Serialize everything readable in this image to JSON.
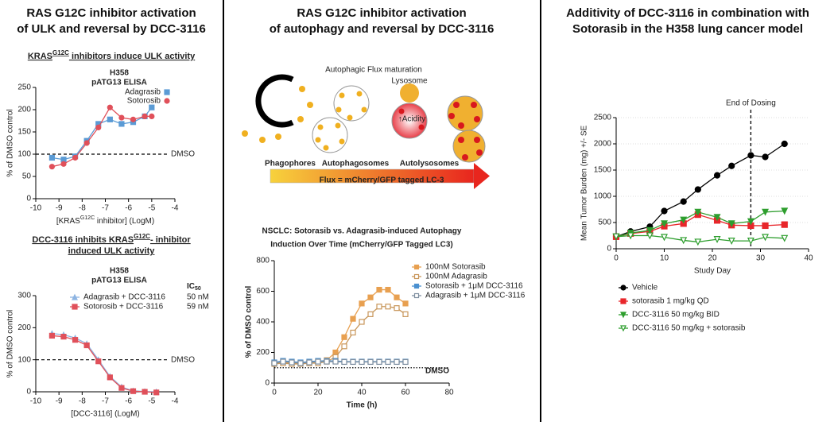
{
  "panels": [
    {
      "title_lines": [
        "RAS G12C inhibitor activation",
        "of ULK and reversal by DCC-3116"
      ],
      "heading1": {
        "pre": "KRAS",
        "sup": "G12C",
        "post": " inhibitors induce ULK activity"
      },
      "heading2": {
        "pre": "DCC-3116 inhibits KRAS",
        "sup": "G12C",
        "post": "- inhibitor",
        "line2": "induced ULK activity"
      }
    },
    {
      "title_lines": [
        "RAS G12C inhibitor activation",
        "of autophagy and reversal by DCC-3116"
      ]
    },
    {
      "title_lines": [
        "Additivity of DCC-3116 in combination with",
        "Sotorasib in the H358 lung cancer model"
      ]
    }
  ],
  "diagram": {
    "title": "Autophagic Flux maturation",
    "lysosome": "Lysosome",
    "acidity": "↑Acidity",
    "stages": [
      "Phagophores",
      "Autophagosomes",
      "Autolysosomes"
    ],
    "flux": "Flux = mCherry/GFP tagged LC-3"
  },
  "chart_data": [
    {
      "type": "line",
      "title": "H358",
      "subtitle": "pATG13 ELISA",
      "x_label": {
        "pre": "[KRAS",
        "sup": "G12C",
        "post": " inhibitor] (LogM)"
      },
      "y_label": "% of DMSO control",
      "x": [
        -9.3,
        -8.8,
        -8.3,
        -7.8,
        -7.3,
        -6.8,
        -6.3,
        -5.8,
        -5.3,
        -5.0
      ],
      "series": [
        {
          "name": "Adagrasib",
          "color": "#5b9bd5",
          "marker": "square",
          "filled": true,
          "values": [
            92,
            88,
            95,
            130,
            168,
            178,
            168,
            172,
            185,
            205
          ]
        },
        {
          "name": "Sotorosib",
          "color": "#e0505a",
          "marker": "circle",
          "filled": true,
          "values": [
            72,
            78,
            92,
            125,
            160,
            205,
            182,
            178,
            185,
            185
          ]
        }
      ],
      "xlim": [
        -10,
        -4
      ],
      "xticks": [
        -10,
        -9,
        -8,
        -7,
        -6,
        -5,
        -4
      ],
      "ylim": [
        0,
        250
      ],
      "yticks": [
        0,
        50,
        100,
        150,
        200,
        250
      ],
      "reference": {
        "value": 100,
        "label": "DMSO"
      }
    },
    {
      "type": "line",
      "title": "H358",
      "subtitle": "pATG13 ELISA",
      "legend_header": {
        "text": "IC",
        "sub": "50"
      },
      "x_label": "[DCC-3116] (LogM)",
      "y_label": "% of DMSO control",
      "x": [
        -9.3,
        -8.8,
        -8.3,
        -7.8,
        -7.3,
        -6.8,
        -6.3,
        -5.8,
        -5.3,
        -4.8
      ],
      "series": [
        {
          "name": "Adagrasib + DCC-3116",
          "ic50": "50 nM",
          "color": "#8db4e2",
          "marker": "triangle",
          "filled": true,
          "values": [
            182,
            178,
            168,
            150,
            100,
            48,
            15,
            3,
            1,
            0
          ]
        },
        {
          "name": "Sotorosib + DCC-3116",
          "ic50": "59 nM",
          "color": "#e0505a",
          "marker": "square",
          "filled": true,
          "values": [
            175,
            172,
            162,
            145,
            95,
            45,
            12,
            2,
            0,
            -2
          ]
        }
      ],
      "xlim": [
        -10,
        -4
      ],
      "xticks": [
        -10,
        -9,
        -8,
        -7,
        -6,
        -5,
        -4
      ],
      "ylim": [
        0,
        300
      ],
      "yticks": [
        0,
        100,
        200,
        300
      ],
      "reference": {
        "value": 100,
        "label": "DMSO"
      }
    },
    {
      "type": "line",
      "title": "NSCLC: Sotorasib vs. Adagrasib-induced Autophagy",
      "subtitle": "Induction Over Time (mCherry/GFP Tagged LC3)",
      "x_label": "Time (h)",
      "y_label": "% of DMSO control",
      "x": [
        0,
        4,
        8,
        12,
        16,
        20,
        24,
        28,
        32,
        36,
        40,
        44,
        48,
        52,
        56,
        60
      ],
      "series": [
        {
          "name": "100nM Sotorasib",
          "color": "#e8a050",
          "marker": "square",
          "filled": true,
          "values": [
            130,
            135,
            130,
            130,
            130,
            140,
            150,
            200,
            300,
            420,
            520,
            560,
            610,
            610,
            560,
            520
          ]
        },
        {
          "name": "100nM Adagrasib",
          "color": "#c8965a",
          "marker": "square",
          "filled": false,
          "values": [
            125,
            130,
            125,
            125,
            130,
            130,
            140,
            170,
            240,
            330,
            400,
            450,
            500,
            500,
            490,
            450
          ]
        },
        {
          "name": "Sotorasib + 1μM DCC-3116",
          "color": "#4a90d0",
          "marker": "square",
          "filled": true,
          "values": [
            135,
            145,
            140,
            135,
            140,
            145,
            145,
            145,
            140,
            140,
            140,
            140,
            140,
            140,
            140,
            140
          ]
        },
        {
          "name": "Adagrasib + 1μM DCC-3116",
          "color": "#7f8fa0",
          "marker": "square",
          "filled": false,
          "values": [
            130,
            140,
            135,
            130,
            135,
            140,
            140,
            140,
            138,
            138,
            138,
            138,
            138,
            138,
            138,
            138
          ]
        }
      ],
      "xlim": [
        0,
        80
      ],
      "xticks": [
        0,
        20,
        40,
        60,
        80
      ],
      "ylim": [
        0,
        800
      ],
      "yticks": [
        0,
        200,
        400,
        600,
        800
      ],
      "reference": {
        "value": 100,
        "label": "DMSO"
      }
    },
    {
      "type": "line",
      "x_label": "Study  Day",
      "y_label": "Mean Tumor Burden (mg) +/- SE",
      "x": [
        0,
        3,
        7,
        10,
        14,
        17,
        21,
        24,
        28,
        31,
        35
      ],
      "series": [
        {
          "name": "Vehicle",
          "color": "#000000",
          "marker": "circle",
          "filled": true,
          "values": [
            230,
            330,
            420,
            720,
            900,
            1130,
            1400,
            1580,
            1780,
            1750,
            2000
          ]
        },
        {
          "name": "sotorasib 1 mg/kg QD",
          "color": "#e8262b",
          "marker": "square",
          "filled": true,
          "values": [
            230,
            290,
            330,
            430,
            480,
            650,
            540,
            450,
            440,
            440,
            460
          ]
        },
        {
          "name": "DCC-3116 50 mg/kg BID",
          "color": "#2e9e2e",
          "marker": "triangle-down",
          "filled": true,
          "values": [
            230,
            300,
            350,
            480,
            550,
            700,
            600,
            480,
            520,
            700,
            720
          ]
        },
        {
          "name": "DCC-3116 50 mg/kg + sotorasib",
          "color": "#2e9e2e",
          "marker": "triangle-down",
          "filled": false,
          "values": [
            230,
            250,
            250,
            220,
            160,
            130,
            180,
            150,
            150,
            220,
            200
          ]
        }
      ],
      "xlim": [
        0,
        40
      ],
      "xticks": [
        0,
        10,
        20,
        30,
        40
      ],
      "ylim": [
        0,
        2500
      ],
      "yticks": [
        0,
        500,
        1000,
        1500,
        2000,
        2500
      ],
      "grid": true,
      "vline": {
        "value": 28,
        "label": "End of Dosing"
      }
    }
  ]
}
